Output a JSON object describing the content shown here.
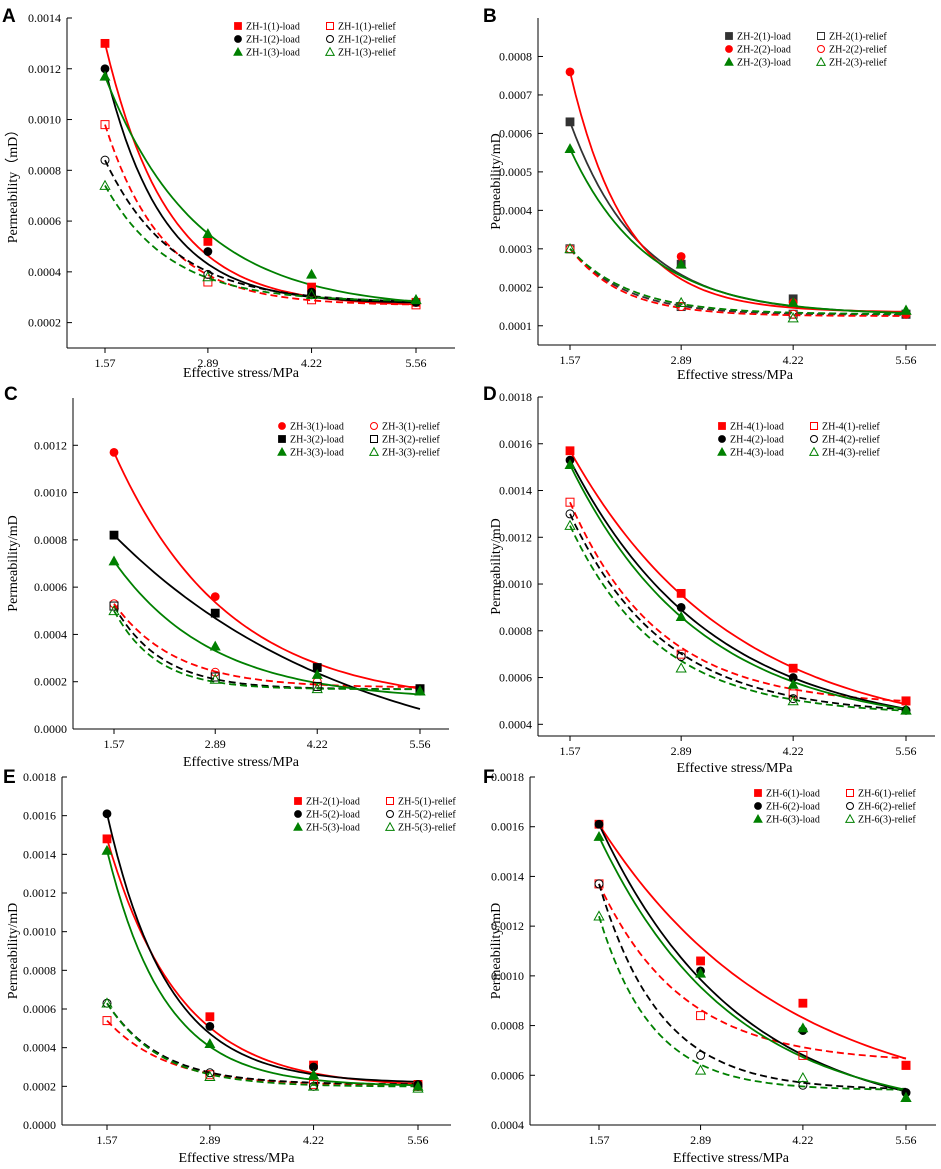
{
  "figure": {
    "colors": {
      "red": "#ff0000",
      "black": "#000000",
      "green": "#008000",
      "gray": "#333333"
    }
  },
  "chart_data": [
    {
      "panel": "A",
      "type": "scatter",
      "xlabel": "Effective stress/MPa",
      "ylabel": "Permeability（mD）",
      "x": [
        1.57,
        2.89,
        4.22,
        5.56
      ],
      "xtick_labels": [
        "1.57",
        "2.89",
        "4.22",
        "5.56"
      ],
      "ylim": [
        0.0001,
        0.0014
      ],
      "yticks": [
        0.0002,
        0.0004,
        0.0006,
        0.0008,
        0.001,
        0.0012,
        0.0014
      ],
      "ytick_labels": [
        "0.0002",
        "0.0004",
        "0.0006",
        "0.0008",
        "0.0010",
        "0.0012",
        "0.0014"
      ],
      "series": [
        {
          "name": "ZH-1(1)-load",
          "color": "red",
          "marker": "square",
          "filled": true,
          "values": [
            0.0013,
            0.00052,
            0.00034,
            0.00028
          ],
          "fit": {
            "c": 0.000265,
            "a": 0.001035,
            "k": 1.25
          }
        },
        {
          "name": "ZH-1(1)-relief",
          "color": "red",
          "marker": "square",
          "filled": false,
          "values": [
            0.00098,
            0.00036,
            0.00029,
            0.00027
          ],
          "fit": {
            "c": 0.000268,
            "a": 0.000712,
            "k": 1.35
          }
        },
        {
          "name": "ZH-1(2)-load",
          "color": "black",
          "marker": "circle",
          "filled": true,
          "values": [
            0.0012,
            0.00048,
            0.00032,
            0.00028
          ],
          "fit": {
            "c": 0.000275,
            "a": 0.000925,
            "k": 1.35
          }
        },
        {
          "name": "ZH-1(2)-relief",
          "color": "black",
          "marker": "circle",
          "filled": false,
          "values": [
            0.00084,
            0.00039,
            0.00031,
            0.00028
          ],
          "fit": {
            "c": 0.000278,
            "a": 0.000562,
            "k": 1.15
          }
        },
        {
          "name": "ZH-1(3)-load",
          "color": "green",
          "marker": "triangle",
          "filled": true,
          "values": [
            0.00117,
            0.00055,
            0.00039,
            0.00029
          ],
          "fit": {
            "c": 0.000252,
            "a": 0.000918,
            "k": 0.85
          }
        },
        {
          "name": "ZH-1(3)-relief",
          "color": "green",
          "marker": "triangle",
          "filled": false,
          "values": [
            0.00074,
            0.00038,
            0.00031,
            0.00029
          ],
          "fit": {
            "c": 0.000282,
            "a": 0.000458,
            "k": 1.2
          }
        }
      ]
    },
    {
      "panel": "B",
      "type": "scatter",
      "xlabel": "Effective stress/MPa",
      "ylabel": "Permeability/mD",
      "x": [
        1.57,
        2.89,
        4.22,
        5.56
      ],
      "xtick_labels": [
        "1.57",
        "2.89",
        "4.22",
        "5.56"
      ],
      "ylim": [
        5e-05,
        0.0009
      ],
      "yticks": [
        0.0001,
        0.0002,
        0.0003,
        0.0004,
        0.0005,
        0.0006,
        0.0007,
        0.0008
      ],
      "ytick_labels": [
        "0.0001",
        "0.0002",
        "0.0003",
        "0.0004",
        "0.0005",
        "0.0006",
        "0.0007",
        "0.0008"
      ],
      "series": [
        {
          "name": "ZH-2(1)-load",
          "color": "gray",
          "marker": "square",
          "filled": true,
          "values": [
            0.00063,
            0.00026,
            0.00017,
            0.00013
          ],
          "fit": {
            "c": 0.00013,
            "a": 0.0005,
            "k": 1.2
          }
        },
        {
          "name": "ZH-2(1)-relief",
          "color": "gray",
          "marker": "square",
          "filled": false,
          "values": [
            0.0003,
            0.00015,
            0.00013,
            0.00013
          ],
          "fit": {
            "c": 0.000128,
            "a": 0.000172,
            "k": 1.5
          }
        },
        {
          "name": "ZH-2(2)-load",
          "color": "red",
          "marker": "circle",
          "filled": true,
          "values": [
            0.00076,
            0.00028,
            0.00016,
            0.00013
          ],
          "fit": {
            "c": 0.000135,
            "a": 0.000625,
            "k": 1.5
          }
        },
        {
          "name": "ZH-2(2)-relief",
          "color": "red",
          "marker": "circle",
          "filled": false,
          "values": [
            0.0003,
            0.00015,
            0.00013,
            0.00013
          ],
          "fit": {
            "c": 0.000125,
            "a": 0.000175,
            "k": 1.6
          }
        },
        {
          "name": "ZH-2(3)-load",
          "color": "green",
          "marker": "triangle",
          "filled": true,
          "values": [
            0.00056,
            0.00026,
            0.00016,
            0.00014
          ],
          "fit": {
            "c": 0.000128,
            "a": 0.000432,
            "k": 1.1
          }
        },
        {
          "name": "ZH-2(3)-relief",
          "color": "green",
          "marker": "triangle",
          "filled": false,
          "values": [
            0.0003,
            0.00016,
            0.00012,
            0.00014
          ],
          "fit": {
            "c": 0.00013,
            "a": 0.00017,
            "k": 1.4
          }
        }
      ]
    },
    {
      "panel": "C",
      "type": "scatter",
      "xlabel": "Effective stress/MPa",
      "ylabel": "Permeability/mD",
      "x": [
        1.57,
        2.89,
        4.22,
        5.56
      ],
      "xtick_labels": [
        "1.57",
        "2.89",
        "4.22",
        "5.56"
      ],
      "ylim": [
        0.0,
        0.0014
      ],
      "yticks": [
        0.0,
        0.0002,
        0.0004,
        0.0006,
        0.0008,
        0.001,
        0.0012
      ],
      "ytick_labels": [
        "0.0000",
        "0.0002",
        "0.0004",
        "0.0006",
        "0.0008",
        "0.0010",
        "0.0012"
      ],
      "series": [
        {
          "name": "ZH-3(1)-load",
          "color": "red",
          "marker": "circle",
          "filled": true,
          "values": [
            0.00117,
            0.00056,
            0.00026,
            0.00016
          ],
          "fit": {
            "c": 0.0001,
            "a": 0.00107,
            "k": 0.68
          }
        },
        {
          "name": "ZH-3(1)-relief",
          "color": "red",
          "marker": "circle",
          "filled": false,
          "values": [
            0.00053,
            0.00024,
            0.0002,
            0.00017
          ],
          "fit": {
            "c": 0.000175,
            "a": 0.000355,
            "k": 1.25
          }
        },
        {
          "name": "ZH-3(2)-load",
          "color": "black",
          "marker": "square",
          "filled": true,
          "values": [
            0.00082,
            0.00049,
            0.00026,
            0.00017
          ],
          "fit": {
            "c": -0.0002,
            "a": 0.00102,
            "k": 0.32
          }
        },
        {
          "name": "ZH-3(2)-relief",
          "color": "black",
          "marker": "square",
          "filled": false,
          "values": [
            0.00052,
            0.00022,
            0.00018,
            0.00017
          ],
          "fit": {
            "c": 0.000168,
            "a": 0.000352,
            "k": 1.6
          }
        },
        {
          "name": "ZH-3(3)-load",
          "color": "green",
          "marker": "triangle",
          "filled": true,
          "values": [
            0.00071,
            0.00035,
            0.00023,
            0.00016
          ],
          "fit": {
            "c": 0.00012,
            "a": 0.00059,
            "k": 0.78
          }
        },
        {
          "name": "ZH-3(3)-relief",
          "color": "green",
          "marker": "triangle",
          "filled": false,
          "values": [
            0.0005,
            0.00021,
            0.00017,
            0.00016
          ],
          "fit": {
            "c": 0.000168,
            "a": 0.000332,
            "k": 1.8
          }
        }
      ]
    },
    {
      "panel": "D",
      "type": "scatter",
      "xlabel": "Effective stress/MPa",
      "ylabel": "Permeability/mD",
      "x": [
        1.57,
        2.89,
        4.22,
        5.56
      ],
      "xtick_labels": [
        "1.57",
        "2.89",
        "4.22",
        "5.56"
      ],
      "ylim": [
        0.00035,
        0.0018
      ],
      "yticks": [
        0.0004,
        0.0006,
        0.0008,
        0.001,
        0.0012,
        0.0014,
        0.0016,
        0.0018
      ],
      "ytick_labels": [
        "0.0004",
        "0.0006",
        "0.0008",
        "0.0010",
        "0.0012",
        "0.0014",
        "0.0016",
        "0.0018"
      ],
      "series": [
        {
          "name": "ZH-4(1)-load",
          "color": "red",
          "marker": "square",
          "filled": true,
          "values": [
            0.00157,
            0.00096,
            0.00064,
            0.0005
          ],
          "fit": {
            "c": 0.00033,
            "a": 0.00124,
            "k": 0.52
          }
        },
        {
          "name": "ZH-4(1)-relief",
          "color": "red",
          "marker": "square",
          "filled": false,
          "values": [
            0.00135,
            0.0007,
            0.00053,
            0.0005
          ],
          "fit": {
            "c": 0.00048,
            "a": 0.00087,
            "k": 0.95
          }
        },
        {
          "name": "ZH-4(2)-load",
          "color": "black",
          "marker": "circle",
          "filled": true,
          "values": [
            0.00153,
            0.0009,
            0.0006,
            0.00046
          ],
          "fit": {
            "c": 0.00036,
            "a": 0.00117,
            "k": 0.6
          }
        },
        {
          "name": "ZH-4(2)-relief",
          "color": "black",
          "marker": "circle",
          "filled": false,
          "values": [
            0.0013,
            0.00069,
            0.00051,
            0.00046
          ],
          "fit": {
            "c": 0.00044,
            "a": 0.00086,
            "k": 0.9
          }
        },
        {
          "name": "ZH-4(3)-load",
          "color": "green",
          "marker": "triangle",
          "filled": true,
          "values": [
            0.00151,
            0.00086,
            0.00057,
            0.00046
          ],
          "fit": {
            "c": 0.00038,
            "a": 0.00113,
            "k": 0.65
          }
        },
        {
          "name": "ZH-4(3)-relief",
          "color": "green",
          "marker": "triangle",
          "filled": false,
          "values": [
            0.00125,
            0.00064,
            0.0005,
            0.00046
          ],
          "fit": {
            "c": 0.00044,
            "a": 0.00081,
            "k": 0.95
          }
        }
      ]
    },
    {
      "panel": "E",
      "type": "scatter",
      "xlabel": "Effective stress/MPa",
      "ylabel": "Permeability/mD",
      "x": [
        1.57,
        2.89,
        4.22,
        5.56
      ],
      "xtick_labels": [
        "1.57",
        "2.89",
        "4.22",
        "5.56"
      ],
      "ylim": [
        0.0,
        0.0018
      ],
      "yticks": [
        0.0,
        0.0002,
        0.0004,
        0.0006,
        0.0008,
        0.001,
        0.0012,
        0.0014,
        0.0016,
        0.0018
      ],
      "ytick_labels": [
        "0.0000",
        "0.0002",
        "0.0004",
        "0.0006",
        "0.0008",
        "0.0010",
        "0.0012",
        "0.0014",
        "0.0016",
        "0.0018"
      ],
      "series": [
        {
          "name": "ZH-2(1)-load",
          "color": "red",
          "marker": "square",
          "filled": true,
          "values": [
            0.00148,
            0.00056,
            0.00031,
            0.00021
          ],
          "fit": {
            "c": 0.000195,
            "a": 0.001285,
            "k": 1.08
          }
        },
        {
          "name": "ZH-5(1)-relief",
          "color": "red",
          "marker": "square",
          "filled": false,
          "values": [
            0.00054,
            0.00026,
            0.00021,
            0.0002
          ],
          "fit": {
            "c": 0.000205,
            "a": 0.000335,
            "k": 1.3
          }
        },
        {
          "name": "ZH-5(2)-load",
          "color": "black",
          "marker": "circle",
          "filled": true,
          "values": [
            0.00161,
            0.00051,
            0.0003,
            0.00021
          ],
          "fit": {
            "c": 0.000215,
            "a": 0.001395,
            "k": 1.28
          }
        },
        {
          "name": "ZH-5(2)-relief",
          "color": "black",
          "marker": "circle",
          "filled": false,
          "values": [
            0.00063,
            0.00027,
            0.0002,
            0.0002
          ],
          "fit": {
            "c": 0.00021,
            "a": 0.00042,
            "k": 1.45
          }
        },
        {
          "name": "ZH-5(3)-load",
          "color": "green",
          "marker": "triangle",
          "filled": true,
          "values": [
            0.00142,
            0.00042,
            0.00026,
            0.0002
          ],
          "fit": {
            "c": 0.0002,
            "a": 0.00122,
            "k": 1.35
          }
        },
        {
          "name": "ZH-5(3)-relief",
          "color": "green",
          "marker": "triangle",
          "filled": false,
          "values": [
            0.00063,
            0.00025,
            0.0002,
            0.00019
          ],
          "fit": {
            "c": 0.000198,
            "a": 0.000432,
            "k": 1.45
          }
        }
      ]
    },
    {
      "panel": "F",
      "type": "scatter",
      "xlabel": "Effective stress/MPa",
      "ylabel": "Permeability/mD",
      "x": [
        1.57,
        2.89,
        4.22,
        5.56
      ],
      "xtick_labels": [
        "1.57",
        "2.89",
        "4.22",
        "5.56"
      ],
      "ylim": [
        0.0004,
        0.0018
      ],
      "yticks": [
        0.0004,
        0.0006,
        0.0008,
        0.001,
        0.0012,
        0.0014,
        0.0016,
        0.0018
      ],
      "ytick_labels": [
        "0.0004",
        "0.0006",
        "0.0008",
        "0.0010",
        "0.0012",
        "0.0014",
        "0.0016",
        "0.0018"
      ],
      "series": [
        {
          "name": "ZH-6(1)-load",
          "color": "red",
          "marker": "square",
          "filled": true,
          "values": [
            0.00161,
            0.00106,
            0.00089,
            0.00064
          ],
          "fit": {
            "c": 0.00045,
            "a": 0.00116,
            "k": 0.42
          }
        },
        {
          "name": "ZH-6(1)-relief",
          "color": "red",
          "marker": "square",
          "filled": false,
          "values": [
            0.00137,
            0.00084,
            0.00068,
            0.00064
          ],
          "fit": {
            "c": 0.00065,
            "a": 0.00072,
            "k": 0.92
          }
        },
        {
          "name": "ZH-6(2)-load",
          "color": "black",
          "marker": "circle",
          "filled": true,
          "values": [
            0.00161,
            0.00102,
            0.00078,
            0.00053
          ],
          "fit": {
            "c": 0.0004,
            "a": 0.00121,
            "k": 0.55
          }
        },
        {
          "name": "ZH-6(2)-relief",
          "color": "black",
          "marker": "circle",
          "filled": false,
          "values": [
            0.00137,
            0.00068,
            0.00056,
            0.00053
          ],
          "fit": {
            "c": 0.00054,
            "a": 0.00083,
            "k": 1.25
          }
        },
        {
          "name": "ZH-6(3)-load",
          "color": "green",
          "marker": "triangle",
          "filled": true,
          "values": [
            0.00156,
            0.00101,
            0.00079,
            0.00051
          ],
          "fit": {
            "c": 0.00043,
            "a": 0.00113,
            "k": 0.58
          }
        },
        {
          "name": "ZH-6(3)-relief",
          "color": "green",
          "marker": "triangle",
          "filled": false,
          "values": [
            0.00124,
            0.00062,
            0.00059,
            0.00051
          ],
          "fit": {
            "c": 0.00054,
            "a": 0.0007,
            "k": 1.45
          }
        }
      ]
    }
  ]
}
